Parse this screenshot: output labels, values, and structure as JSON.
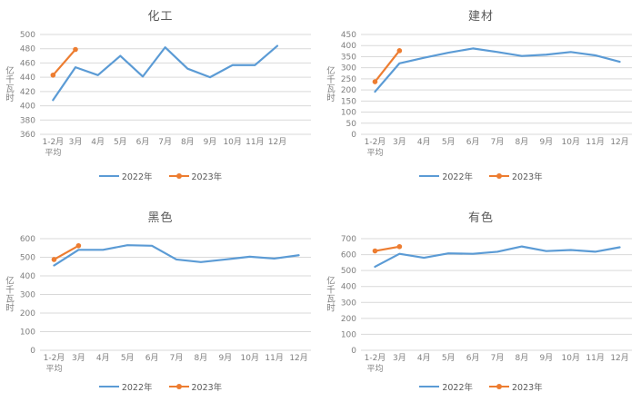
{
  "colors": {
    "series_2022": "#5B9BD5",
    "series_2023": "#ED7D31",
    "gridline": "#D9D9D9",
    "tick_text": "#7F7F7F",
    "title_text": "#595959",
    "background": "#FFFFFF"
  },
  "legend": {
    "label_2022": "2022年",
    "label_2023": "2023年"
  },
  "chart_data": [
    {
      "type": "line",
      "title": "化工",
      "ylabel": "亿千瓦时",
      "ylim": [
        360,
        500
      ],
      "y_step": 20,
      "grid": true,
      "legend_position": "bottom",
      "categories": [
        "1-2月\n平均",
        "3月",
        "4月",
        "5月",
        "6月",
        "7月",
        "8月",
        "9月",
        "10月",
        "11月",
        "12月"
      ],
      "x_slots": 12,
      "series": [
        {
          "name": "2022年",
          "color": "#5B9BD5",
          "marker": false,
          "values": [
            408,
            454,
            443,
            470,
            441,
            482,
            452,
            440,
            457,
            457,
            484
          ]
        },
        {
          "name": "2023年",
          "color": "#ED7D31",
          "marker": true,
          "values": [
            443,
            479
          ]
        }
      ]
    },
    {
      "type": "line",
      "title": "建材",
      "ylabel": "亿千瓦时",
      "ylim": [
        0,
        450
      ],
      "y_step": 50,
      "grid": true,
      "legend_position": "bottom",
      "categories": [
        "1-2月\n平均",
        "3月",
        "4月",
        "5月",
        "6月",
        "7月",
        "8月",
        "9月",
        "10月",
        "11月",
        "12月"
      ],
      "x_slots": 11,
      "series": [
        {
          "name": "2022年",
          "color": "#5B9BD5",
          "marker": false,
          "values": [
            192,
            320,
            345,
            368,
            387,
            371,
            353,
            359,
            371,
            356,
            327
          ]
        },
        {
          "name": "2023年",
          "color": "#ED7D31",
          "marker": true,
          "values": [
            237,
            377
          ]
        }
      ]
    },
    {
      "type": "line",
      "title": "黑色",
      "ylabel": "亿千瓦时",
      "ylim": [
        0,
        600
      ],
      "y_step": 100,
      "grid": true,
      "legend_position": "bottom",
      "categories": [
        "1-2月\n平均",
        "3月",
        "4月",
        "5月",
        "6月",
        "7月",
        "8月",
        "9月",
        "10月",
        "11月",
        "12月"
      ],
      "x_slots": 11,
      "series": [
        {
          "name": "2022年",
          "color": "#5B9BD5",
          "marker": false,
          "values": [
            456,
            540,
            540,
            565,
            562,
            488,
            474,
            488,
            503,
            493,
            511
          ]
        },
        {
          "name": "2023年",
          "color": "#ED7D31",
          "marker": true,
          "values": [
            488,
            562
          ]
        }
      ]
    },
    {
      "type": "line",
      "title": "有色",
      "ylabel": "亿千瓦时",
      "ylim": [
        0,
        700
      ],
      "y_step": 100,
      "grid": true,
      "legend_position": "bottom",
      "categories": [
        "1-2月\n平均",
        "3月",
        "4月",
        "5月",
        "6月",
        "7月",
        "8月",
        "9月",
        "10月",
        "11月",
        "12月"
      ],
      "x_slots": 11,
      "series": [
        {
          "name": "2022年",
          "color": "#5B9BD5",
          "marker": false,
          "values": [
            524,
            605,
            580,
            608,
            605,
            618,
            651,
            622,
            629,
            618,
            646
          ]
        },
        {
          "name": "2023年",
          "color": "#ED7D31",
          "marker": true,
          "values": [
            623,
            650
          ]
        }
      ]
    }
  ]
}
